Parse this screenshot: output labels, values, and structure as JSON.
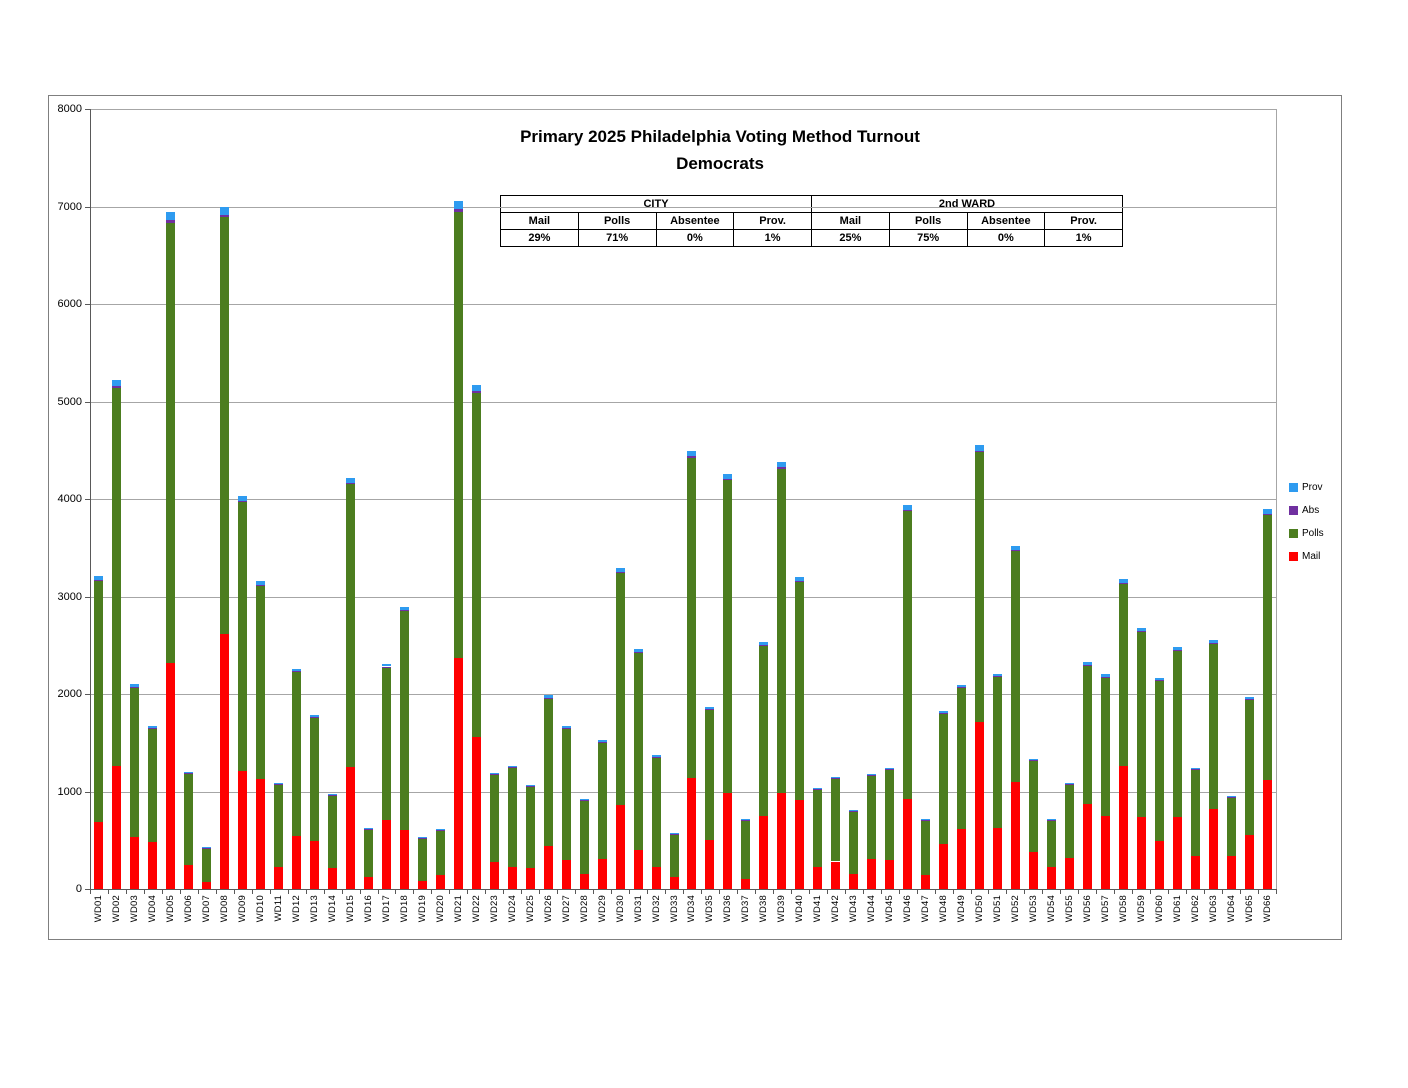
{
  "chart_data": {
    "type": "bar",
    "stacked": true,
    "title": "Primary 2025 Philadelphia Voting Method Turnout",
    "subtitle": "Democrats",
    "ylim": [
      0,
      8000
    ],
    "ytick_interval": 1000,
    "y_ticks": [
      "0",
      "1000",
      "2000",
      "3000",
      "4000",
      "5000",
      "6000",
      "7000",
      "8000"
    ],
    "grid": true,
    "legend_position": "right",
    "legend_order": [
      "Prov",
      "Abs",
      "Polls",
      "Mail"
    ],
    "categories": [
      "WD01",
      "WD02",
      "WD03",
      "WD04",
      "WD05",
      "WD06",
      "WD07",
      "WD08",
      "WD09",
      "WD10",
      "WD11",
      "WD12",
      "WD13",
      "WD14",
      "WD15",
      "WD16",
      "WD17",
      "WD18",
      "WD19",
      "WD20",
      "WD21",
      "WD22",
      "WD23",
      "WD24",
      "WD25",
      "WD26",
      "WD27",
      "WD28",
      "WD29",
      "WD30",
      "WD31",
      "WD32",
      "WD33",
      "WD34",
      "WD35",
      "WD36",
      "WD37",
      "WD38",
      "WD39",
      "WD40",
      "WD41",
      "WD42",
      "WD43",
      "WD44",
      "WD45",
      "WD46",
      "WD47",
      "WD48",
      "WD49",
      "WD50",
      "WD51",
      "WD52",
      "WD53",
      "WD54",
      "WD55",
      "WD56",
      "WD57",
      "WD58",
      "WD59",
      "WD60",
      "WD61",
      "WD62",
      "WD63",
      "WD64",
      "WD65",
      "WD66"
    ],
    "series": [
      {
        "name": "Mail",
        "color": "#fe0000",
        "values": [
          690,
          1260,
          530,
          480,
          2320,
          245,
          75,
          2620,
          1210,
          1130,
          225,
          540,
          490,
          215,
          1250,
          120,
          710,
          610,
          80,
          145,
          2370,
          1555,
          280,
          230,
          212,
          445,
          300,
          150,
          305,
          865,
          400,
          230,
          126,
          1140,
          500,
          985,
          100,
          748,
          985,
          908,
          225,
          282,
          150,
          306,
          300,
          918,
          144,
          464,
          620,
          1715,
          630,
          1095,
          375,
          225,
          320,
          875,
          745,
          1265,
          735,
          495,
          735,
          340,
          820,
          340,
          555,
          1120
        ]
      },
      {
        "name": "Polls",
        "color": "#4c7d1f",
        "values": [
          2468,
          3876,
          1537,
          1163,
          4509,
          936,
          348,
          4268,
          2756,
          1979,
          848,
          1684,
          1262,
          744,
          2902,
          494,
          1563,
          2238,
          442,
          461,
          4577,
          3532,
          891,
          1015,
          841,
          1508,
          1348,
          760,
          1201,
          2373,
          2025,
          1122,
          437,
          3278,
          1341,
          3207,
          608,
          1742,
          3324,
          2241,
          799,
          849,
          652,
          855,
          925,
          2954,
          562,
          1335,
          1442,
          2762,
          1544,
          2369,
          939,
          483,
          748,
          1413,
          1425,
          1859,
          1897,
          1635,
          1705,
          885,
          1694,
          595,
          1383,
          2712
        ]
      },
      {
        "name": "Abs",
        "color": "#7030a0",
        "values": [
          13,
          21,
          8,
          7,
          28,
          5,
          2,
          28,
          16,
          13,
          4,
          9,
          7,
          4,
          17,
          3,
          9,
          12,
          2,
          2,
          28,
          21,
          5,
          5,
          4,
          8,
          7,
          4,
          6,
          13,
          10,
          6,
          2,
          18,
          7,
          17,
          3,
          10,
          18,
          13,
          4,
          5,
          3,
          5,
          5,
          16,
          3,
          7,
          8,
          18,
          9,
          14,
          5,
          3,
          4,
          9,
          9,
          13,
          11,
          9,
          10,
          5,
          10,
          4,
          8,
          16
        ]
      },
      {
        "name": "Prov",
        "color": "#2e9bf0",
        "values": [
          39,
          63,
          25,
          20,
          83,
          14,
          5,
          84,
          48,
          38,
          13,
          27,
          21,
          12,
          51,
          8,
          28,
          35,
          6,
          7,
          85,
          62,
          14,
          15,
          13,
          24,
          20,
          11,
          18,
          39,
          30,
          17,
          7,
          54,
          22,
          51,
          9,
          30,
          53,
          38,
          12,
          14,
          10,
          14,
          15,
          47,
          9,
          22,
          25,
          55,
          27,
          42,
          16,
          9,
          13,
          28,
          26,
          38,
          32,
          26,
          30,
          15,
          31,
          11,
          24,
          47
        ]
      }
    ]
  },
  "summary_table": {
    "groups": [
      {
        "label": "CITY",
        "headers": [
          "Mail",
          "Polls",
          "Absentee",
          "Prov."
        ],
        "values": [
          "29%",
          "71%",
          "0%",
          "1%"
        ]
      },
      {
        "label": "2nd WARD",
        "headers": [
          "Mail",
          "Polls",
          "Absentee",
          "Prov."
        ],
        "values": [
          "25%",
          "75%",
          "0%",
          "1%"
        ]
      }
    ]
  }
}
